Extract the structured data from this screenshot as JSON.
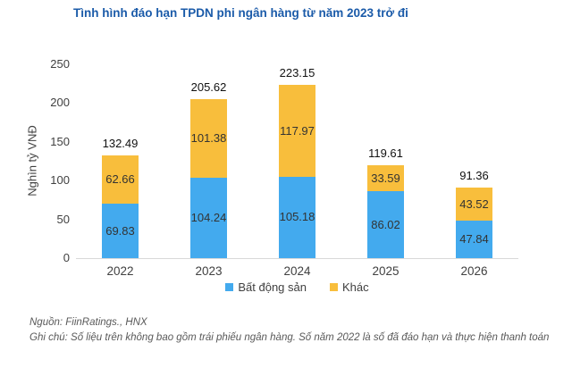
{
  "title": "Tình hình đáo hạn TPDN phi ngân hàng từ năm 2023 trở đi",
  "chart_data": {
    "type": "bar",
    "stacked": true,
    "title": "Tình hình đáo hạn TPDN phi ngân hàng từ năm 2023 trở đi",
    "categories": [
      "2022",
      "2023",
      "2024",
      "2025",
      "2026"
    ],
    "series": [
      {
        "name": "Bất động sản",
        "color": "#43AAEE",
        "values": [
          69.83,
          104.24,
          105.18,
          86.02,
          47.84
        ]
      },
      {
        "name": "Khác",
        "color": "#F8BE3C",
        "values": [
          62.66,
          101.38,
          117.97,
          33.59,
          43.52
        ]
      }
    ],
    "totals": [
      132.49,
      205.62,
      223.15,
      119.61,
      91.36
    ],
    "xlabel": "",
    "ylabel": "Nghìn tỷ VNĐ",
    "ylim": [
      0,
      250
    ],
    "yticks": [
      0,
      50,
      100,
      150,
      200,
      250
    ],
    "grid": false,
    "legend_position": "bottom"
  },
  "footer": {
    "source": "Nguồn: FiinRatings., HNX",
    "note": "Ghi chú: Số liệu trên không bao gồm trái phiếu ngân hàng. Số năm 2022 là số đã đáo hạn và thực hiện thanh toán"
  }
}
